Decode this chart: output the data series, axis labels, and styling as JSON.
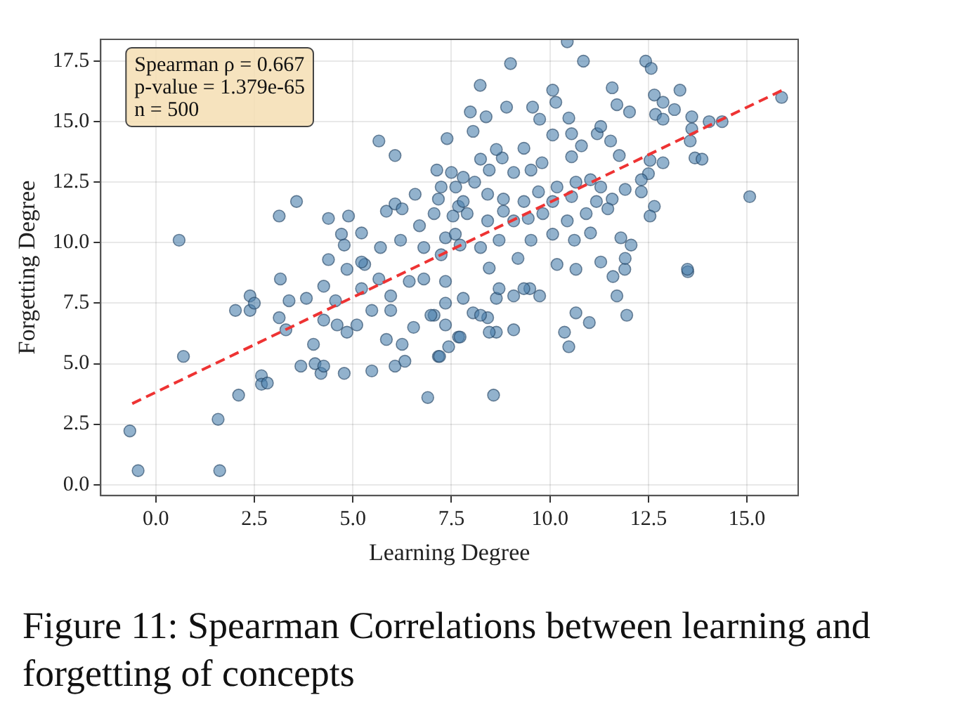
{
  "chart_data": {
    "type": "scatter",
    "xlabel": "Learning Degree",
    "ylabel": "Forgetting Degree",
    "annotations": [
      "Spearman ρ = 0.667\np-value = 1.379e-65\nn = 500",
      "Figure 11: Spearman Correlations between learning and forgetting of concepts"
    ],
    "xlim": [
      -1.4,
      16.3
    ],
    "ylim": [
      -0.45,
      18.4
    ],
    "xticks": [
      {
        "value": 0,
        "label": "0.0"
      },
      2.5,
      {
        "value": 5,
        "label": "5.0"
      },
      7.5,
      {
        "value": 10,
        "label": "10.0"
      },
      12.5,
      {
        "value": 15,
        "label": "15.0"
      }
    ],
    "yticks": [
      {
        "value": 0,
        "label": "0.0"
      },
      2.5,
      {
        "value": 5,
        "label": "5.0"
      },
      7.5,
      {
        "value": 10,
        "label": "10.0"
      },
      12.5,
      {
        "value": 15,
        "label": "15.0"
      },
      17.5
    ],
    "grid": true,
    "legend": false,
    "marker": "circle",
    "series": [
      {
        "type": "scatter",
        "color": "#4a7eab",
        "x": [
          -0.66,
          -0.45,
          0.7,
          1.62,
          1.58,
          2.1,
          2.68,
          2.68,
          2.83,
          2.02,
          2.39,
          2.39,
          2.5,
          3.16,
          3.13,
          3.3,
          3.38,
          3.68,
          4.0,
          4.04,
          4.19,
          4.26,
          3.82,
          4.26,
          4.56,
          4.26,
          4.6,
          4.78,
          4.85,
          5.1,
          5.48,
          5.85,
          6.07,
          6.25,
          6.32,
          6.54,
          6.9,
          7.17,
          7.43,
          4.38,
          4.85,
          5.3,
          5.66,
          5.96,
          6.43,
          6.8,
          7.35,
          7.35,
          7.06,
          7.68,
          5.96,
          5.48,
          5.22,
          13.5,
          11.95,
          11.7,
          11.6,
          11.9,
          11.0,
          10.66,
          10.37,
          10.48,
          10.66,
          10.18,
          8.57,
          9.08,
          8.64,
          8.46,
          9.74,
          9.49,
          9.34,
          9.08,
          8.64,
          8.42,
          8.05,
          7.72,
          7.2,
          7.35,
          6.98,
          8.24,
          8.71,
          7.8,
          5.66,
          7.39,
          6.07,
          3.57,
          3.13,
          0.59,
          4.38,
          4.89,
          4.71,
          5.22,
          4.78,
          5.85,
          6.07,
          6.25,
          6.58,
          7.13,
          7.24,
          7.06,
          6.69,
          6.8,
          6.21,
          5.7,
          7.35,
          7.6,
          7.68,
          5.22,
          10.44,
          9.0,
          10.85,
          12.43,
          12.57,
          8.23,
          10.07,
          11.58,
          13.3,
          12.65,
          12.87,
          10.15,
          8.9,
          9.56,
          7.98,
          11.7,
          13.16,
          8.38,
          9.74,
          10.48,
          12.02,
          12.68,
          12.87,
          13.6,
          14.04,
          14.37,
          15.88,
          15.07,
          13.6,
          13.56,
          13.68,
          13.86,
          12.87,
          12.54,
          12.5,
          12.32,
          12.32,
          12.65,
          12.54,
          11.91,
          11.8,
          12.06,
          11.91,
          11.29,
          13.49,
          8.05,
          7.5,
          7.8,
          8.24,
          8.79,
          8.64,
          9.34,
          10.07,
          10.55,
          10.8,
          11.2,
          11.54,
          11.76,
          11.29,
          10.55,
          9.8,
          9.52,
          9.08,
          8.46,
          8.09,
          7.17,
          7.61,
          7.8,
          8.42,
          8.82,
          9.71,
          10.18,
          10.66,
          11.03,
          11.29,
          11.58,
          11.18,
          10.55,
          10.07,
          9.34,
          7.54,
          7.9,
          8.42,
          8.82,
          9.08,
          9.45,
          9.82,
          10.44,
          10.92,
          11.47,
          11.03,
          10.62,
          10.07,
          9.52,
          8.71,
          8.24,
          7.72,
          7.24,
          9.19,
          8.46
        ],
        "values": [
          2.22,
          0.58,
          5.3,
          0.58,
          2.7,
          3.7,
          4.5,
          4.15,
          4.2,
          7.2,
          7.2,
          7.8,
          7.5,
          8.5,
          6.9,
          6.4,
          7.6,
          4.9,
          5.8,
          5.0,
          4.6,
          4.9,
          7.7,
          8.2,
          7.6,
          6.8,
          6.6,
          4.6,
          6.3,
          6.6,
          4.7,
          6.0,
          4.9,
          5.8,
          5.1,
          6.5,
          3.6,
          5.3,
          5.7,
          9.3,
          8.9,
          9.1,
          8.5,
          7.8,
          8.4,
          8.5,
          8.4,
          7.5,
          7.0,
          6.1,
          7.2,
          7.2,
          8.1,
          8.8,
          7.0,
          7.8,
          8.6,
          8.9,
          6.7,
          7.1,
          6.3,
          5.7,
          8.9,
          9.1,
          3.7,
          6.4,
          6.3,
          6.3,
          7.8,
          8.1,
          8.1,
          7.8,
          7.7,
          6.9,
          7.1,
          6.1,
          5.3,
          6.6,
          7.0,
          7.0,
          8.1,
          7.7,
          14.2,
          14.3,
          13.6,
          11.7,
          11.1,
          10.1,
          11.0,
          11.1,
          10.35,
          10.4,
          9.9,
          11.3,
          11.6,
          11.4,
          12.0,
          13.0,
          12.3,
          11.2,
          10.7,
          9.8,
          10.1,
          9.8,
          10.2,
          10.35,
          11.5,
          9.2,
          18.3,
          17.4,
          17.5,
          17.5,
          17.2,
          16.5,
          16.3,
          16.4,
          16.3,
          16.1,
          15.8,
          15.8,
          15.6,
          15.6,
          15.4,
          15.7,
          15.5,
          15.2,
          15.1,
          15.15,
          15.4,
          15.3,
          15.1,
          15.2,
          15.0,
          15.0,
          16.0,
          11.9,
          14.7,
          14.2,
          13.5,
          13.45,
          13.3,
          13.4,
          12.85,
          12.6,
          12.1,
          11.5,
          11.1,
          12.2,
          10.2,
          9.9,
          9.35,
          9.2,
          8.9,
          14.6,
          12.9,
          12.7,
          13.45,
          13.5,
          13.85,
          13.9,
          14.45,
          14.5,
          14.0,
          14.5,
          14.2,
          13.6,
          14.8,
          13.55,
          13.3,
          13.0,
          12.9,
          13.0,
          12.5,
          11.8,
          12.3,
          11.7,
          12.0,
          11.8,
          12.1,
          12.3,
          12.5,
          12.6,
          12.3,
          11.8,
          11.7,
          11.9,
          11.7,
          11.7,
          11.1,
          11.2,
          10.9,
          11.3,
          10.9,
          11.0,
          11.2,
          10.9,
          11.2,
          11.4,
          10.4,
          10.1,
          10.35,
          10.1,
          10.1,
          9.8,
          9.9,
          9.5,
          9.35,
          8.95
        ]
      },
      {
        "type": "line",
        "color": "#ee3333",
        "line_style": "dashed",
        "marker": "none",
        "x": [
          -0.6,
          15.9
        ],
        "values": [
          3.35,
          16.3
        ]
      }
    ]
  }
}
